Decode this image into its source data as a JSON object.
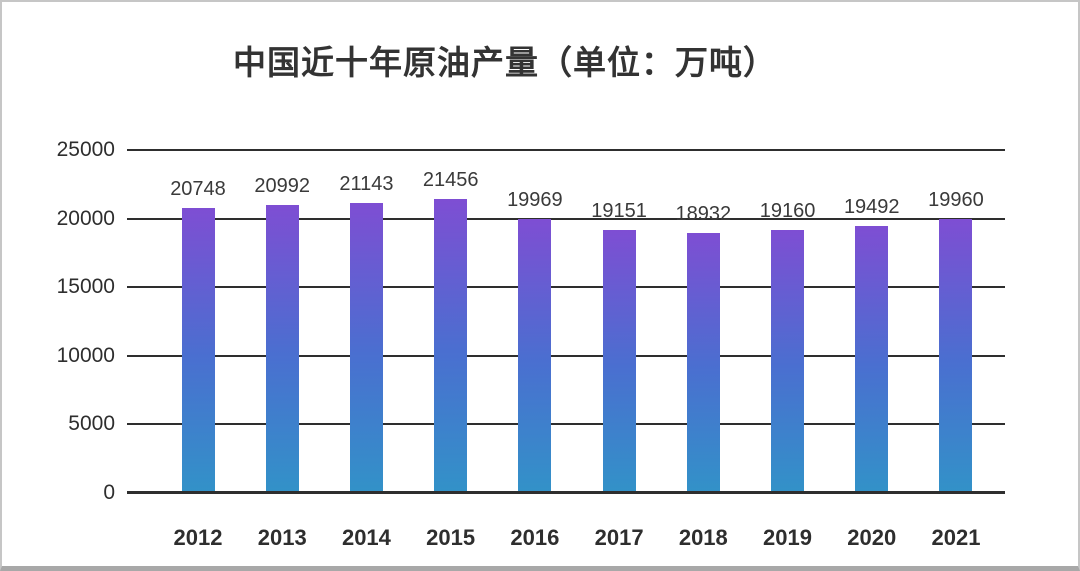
{
  "chart_data": {
    "type": "bar",
    "title": "中国近十年原油产量（单位：万吨）",
    "categories": [
      "2012",
      "2013",
      "2014",
      "2015",
      "2016",
      "2017",
      "2018",
      "2019",
      "2020",
      "2021"
    ],
    "values": [
      20748,
      20992,
      21143,
      21456,
      19969,
      19151,
      18932,
      19160,
      19492,
      19960
    ],
    "xlabel": "",
    "ylabel": "",
    "ylim": [
      0,
      25000
    ],
    "yticks": [
      0,
      5000,
      10000,
      15000,
      20000,
      25000
    ],
    "grid": true,
    "legend_position": "none",
    "colors": {
      "bar_gradient_top": "#7e4ed3",
      "bar_gradient_mid": "#4a6fd0",
      "bar_gradient_bottom": "#3292c8",
      "gridline": "#2e2e2e",
      "text": "#2e2e2e",
      "value_label": "#3a3a3a",
      "frame_border": "#c6c6c6"
    }
  }
}
